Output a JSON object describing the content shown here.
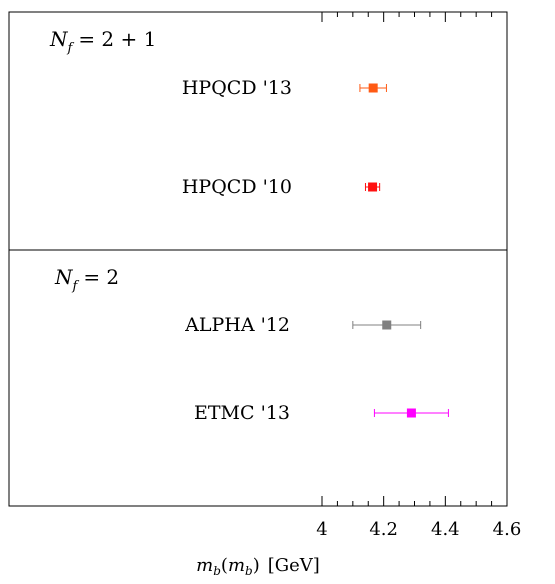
{
  "chart_data": {
    "type": "scatter",
    "orientation": "horizontal-error-bars",
    "xlabel_main": "m",
    "xlabel_sub": "b",
    "xlabel_paren_open": "(",
    "xlabel_paren_close": ")",
    "xlabel_unit": "[GeV]",
    "xlim": [
      3.98,
      4.6
    ],
    "xticks": [
      {
        "value": 4.0,
        "label": "4"
      },
      {
        "value": 4.2,
        "label": "4.2"
      },
      {
        "value": 4.4,
        "label": "4.4"
      },
      {
        "value": 4.6,
        "label": "4.6"
      }
    ],
    "minor_tick_step": 0.05,
    "grid": false,
    "panels": [
      {
        "header_sym": "N",
        "header_sub": "f",
        "header_rest": "= 2 + 1",
        "entries": [
          {
            "name": "HPQCD '13",
            "value": 4.166,
            "err_low": 0.043,
            "err_high": 0.043,
            "color": "#ff5a14"
          },
          {
            "name": "HPQCD '10",
            "value": 4.164,
            "err_low": 0.023,
            "err_high": 0.023,
            "color": "#ff1010"
          }
        ]
      },
      {
        "header_sym": "N",
        "header_sub": "f",
        "header_rest": "= 2",
        "entries": [
          {
            "name": "ALPHA '12",
            "value": 4.21,
            "err_low": 0.11,
            "err_high": 0.11,
            "color": "#808080"
          },
          {
            "name": "ETMC '13",
            "value": 4.29,
            "err_low": 0.12,
            "err_high": 0.12,
            "color": "#ff00ff"
          }
        ]
      }
    ]
  }
}
